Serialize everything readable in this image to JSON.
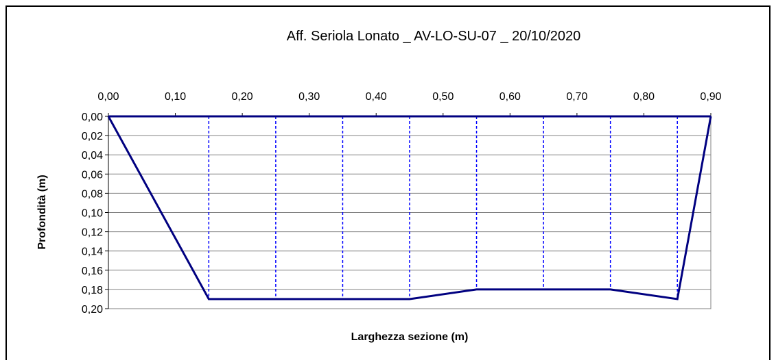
{
  "chart_data": {
    "type": "line",
    "title": "Aff. Seriola Lonato _ AV-LO-SU-07 _ 20/10/2020",
    "xlabel": "Larghezza sezione (m)",
    "ylabel": "Profondità (m)",
    "xlim": [
      0,
      0.9
    ],
    "ylim": [
      0,
      0.2
    ],
    "y_inverted": true,
    "x_axis_position": "top",
    "grid": true,
    "x_ticks": [
      "0,00",
      "0,10",
      "0,20",
      "0,30",
      "0,40",
      "0,50",
      "0,60",
      "0,70",
      "0,80",
      "0,90"
    ],
    "y_ticks": [
      "0,00",
      "0,02",
      "0,04",
      "0,06",
      "0,08",
      "0,10",
      "0,12",
      "0,14",
      "0,16",
      "0,18",
      "0,20"
    ],
    "series": [
      {
        "color": "#000080",
        "x": [
          0,
          0.15,
          0.25,
          0.35,
          0.45,
          0.55,
          0.65,
          0.75,
          0.85,
          0.9
        ],
        "y": [
          0,
          0.19,
          0.19,
          0.19,
          0.19,
          0.18,
          0.18,
          0.18,
          0.19,
          0
        ]
      }
    ],
    "verticals": {
      "style": "dashed",
      "color": "#0000ff",
      "x": [
        0.15,
        0.25,
        0.35,
        0.45,
        0.55,
        0.65,
        0.75,
        0.85
      ]
    },
    "surface_line": {
      "y": 0,
      "color": "#000080"
    }
  }
}
